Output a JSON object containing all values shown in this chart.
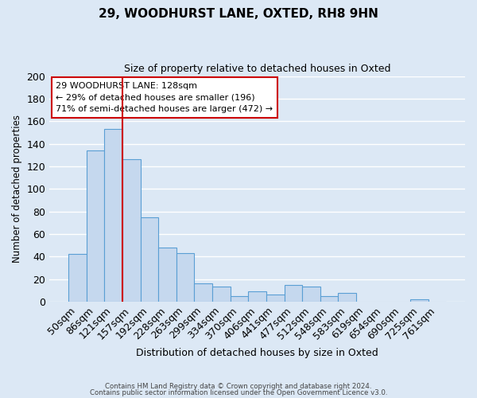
{
  "title": "29, WOODHURST LANE, OXTED, RH8 9HN",
  "subtitle": "Size of property relative to detached houses in Oxted",
  "xlabel": "Distribution of detached houses by size in Oxted",
  "ylabel": "Number of detached properties",
  "bin_labels": [
    "50sqm",
    "86sqm",
    "121sqm",
    "157sqm",
    "192sqm",
    "228sqm",
    "263sqm",
    "299sqm",
    "334sqm",
    "370sqm",
    "406sqm",
    "441sqm",
    "477sqm",
    "512sqm",
    "548sqm",
    "583sqm",
    "619sqm",
    "654sqm",
    "690sqm",
    "725sqm",
    "761sqm"
  ],
  "bar_heights": [
    42,
    134,
    153,
    126,
    75,
    48,
    43,
    16,
    13,
    5,
    9,
    6,
    15,
    13,
    5,
    8,
    0,
    0,
    0,
    2,
    0
  ],
  "bar_color": "#c5d8ee",
  "bar_edgecolor": "#5a9fd4",
  "bar_linewidth": 0.8,
  "vline_x": 2.5,
  "vline_color": "#cc0000",
  "annotation_title": "29 WOODHURST LANE: 128sqm",
  "annotation_line1": "← 29% of detached houses are smaller (196)",
  "annotation_line2": "71% of semi-detached houses are larger (472) →",
  "ylim": [
    0,
    200
  ],
  "yticks": [
    0,
    20,
    40,
    60,
    80,
    100,
    120,
    140,
    160,
    180,
    200
  ],
  "bg_color": "#dce8f5",
  "plot_bg_color": "#dce8f5",
  "footer1": "Contains HM Land Registry data © Crown copyright and database right 2024.",
  "footer2": "Contains public sector information licensed under the Open Government Licence v3.0.",
  "grid_color": "#ffffff",
  "annotation_box_color": "#ffffff",
  "annotation_box_edgecolor": "#cc0000"
}
